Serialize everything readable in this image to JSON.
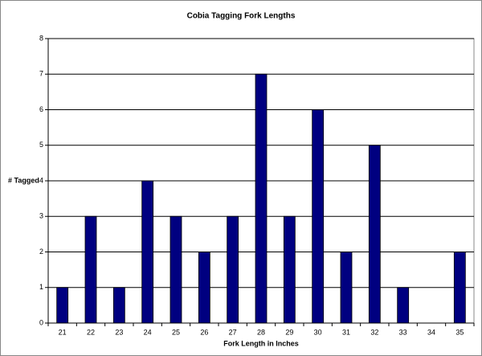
{
  "chart_data": {
    "type": "bar",
    "title": "Cobia Tagging Fork Lengths",
    "x_label": "Fork Length in Inches",
    "y_label": "# Tagged",
    "categories": [
      "21",
      "22",
      "23",
      "24",
      "25",
      "26",
      "27",
      "28",
      "29",
      "30",
      "31",
      "32",
      "33",
      "34",
      "35"
    ],
    "values": [
      1,
      3,
      1,
      4,
      3,
      2,
      3,
      7,
      3,
      6,
      2,
      5,
      1,
      0,
      2
    ],
    "color": "#000080",
    "ylim": [
      0,
      8
    ],
    "yticks": [
      0,
      1,
      2,
      3,
      4,
      5,
      6,
      7,
      8
    ],
    "grid": true
  }
}
